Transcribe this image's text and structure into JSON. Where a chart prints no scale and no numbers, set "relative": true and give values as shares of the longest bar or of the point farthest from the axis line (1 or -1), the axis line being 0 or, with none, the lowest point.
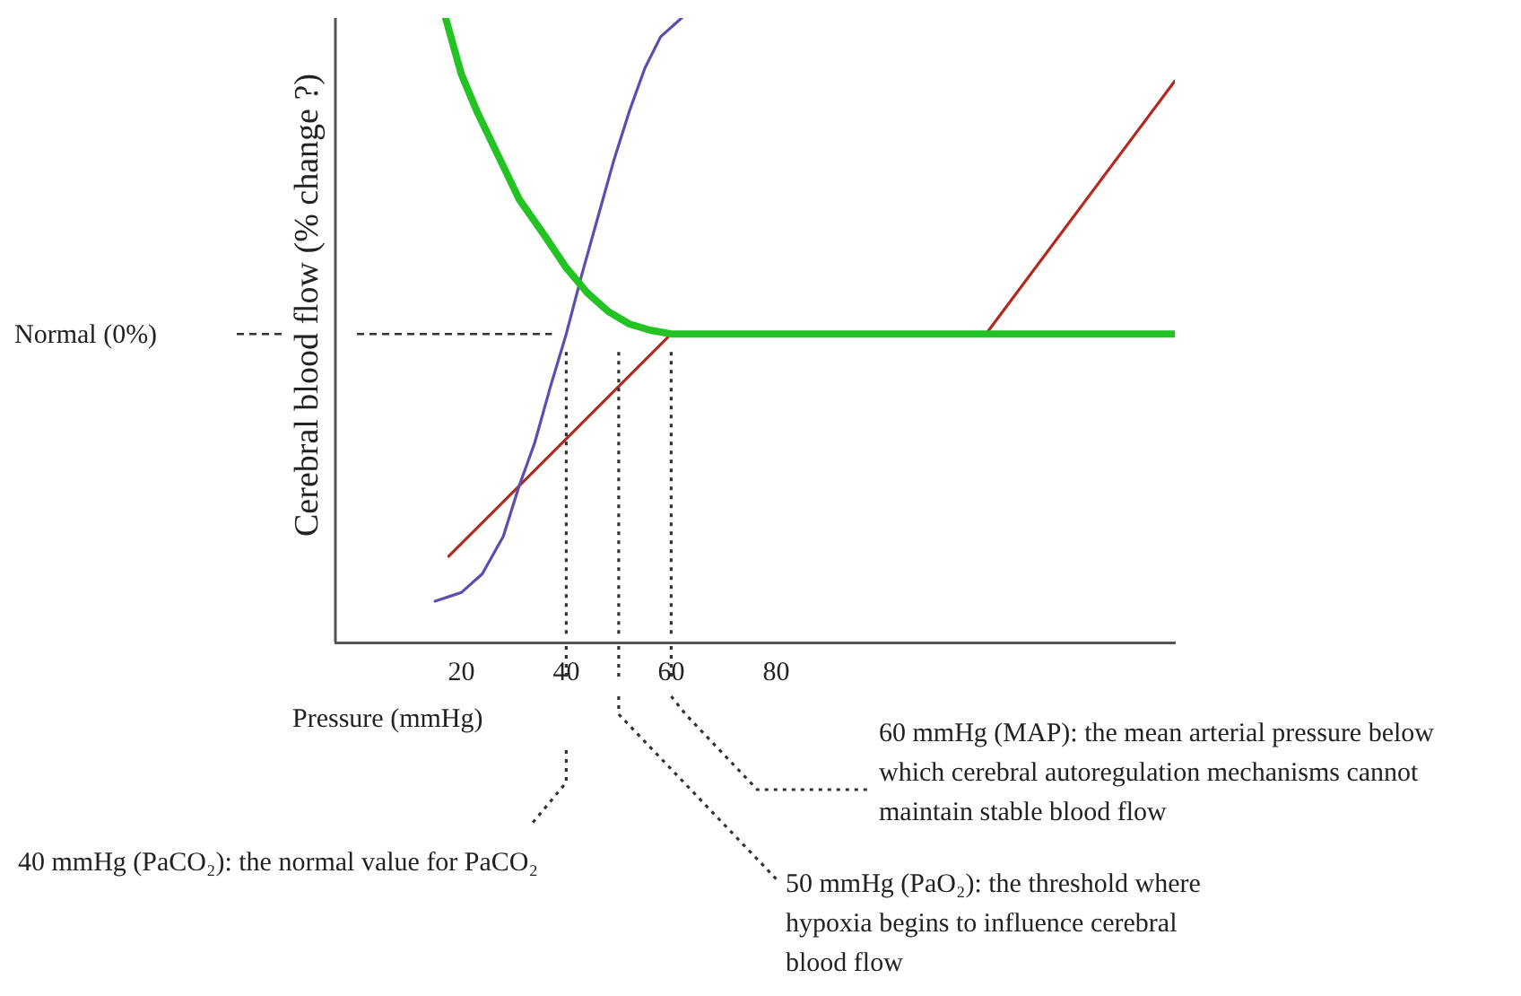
{
  "chart_data": {
    "type": "line",
    "relative": true,
    "xlabel": "Pressure (mmHg)",
    "ylabel": "Cerebral blood flow (% change ?)",
    "xlim": [
      -4,
      156
    ],
    "xticks": [
      20,
      40,
      60,
      80
    ],
    "grid": false,
    "legend": false,
    "marker": "none",
    "line_style": "solid",
    "series": [
      {
        "color": "#22c322",
        "x": [
          17,
          20,
          23,
          27,
          31,
          36,
          40,
          44,
          48,
          52,
          56,
          60,
          120,
          156
        ],
        "values": [
          1.0,
          0.91,
          0.85,
          0.78,
          0.71,
          0.65,
          0.6,
          0.56,
          0.53,
          0.51,
          0.5,
          0.494,
          0.494,
          0.494
        ]
      },
      {
        "color": "#5a4fb0",
        "x": [
          15,
          20,
          24,
          28,
          31,
          34,
          37,
          40,
          43,
          46,
          49,
          52,
          55,
          58,
          62
        ],
        "values": [
          0.066,
          0.08,
          0.11,
          0.17,
          0.25,
          0.32,
          0.41,
          0.494,
          0.59,
          0.68,
          0.77,
          0.85,
          0.92,
          0.97,
          1.0
        ]
      },
      {
        "color": "#b22a1e",
        "x": [
          17.6,
          60,
          120,
          156
        ],
        "values": [
          0.138,
          0.494,
          0.494,
          0.899
        ]
      }
    ],
    "ref_lines": [
      {
        "axis": "y",
        "value": 0.494,
        "line_style": "dashed"
      },
      {
        "axis": "x",
        "value": 40,
        "line_style": "dotted"
      },
      {
        "axis": "x",
        "value": 50,
        "line_style": "dotted"
      },
      {
        "axis": "x",
        "value": 60,
        "line_style": "dotted"
      }
    ],
    "annotations": [
      "Normal (0%)",
      "40 mmHg (PaCO₂): the normal value for PaCO₂",
      "50 mmHg (PaO₂): the threshold where hypoxia begins to influence cerebral blood flow",
      "60 mmHg (MAP): the mean arterial pressure below which cerebral autoregulation mechanisms cannot maintain stable blood flow"
    ]
  }
}
